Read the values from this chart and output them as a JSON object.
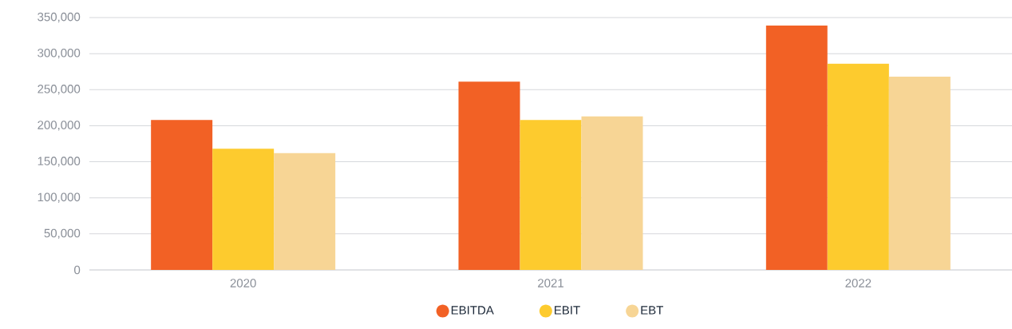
{
  "chart_data": {
    "type": "bar",
    "categories": [
      "2020",
      "2021",
      "2022"
    ],
    "series": [
      {
        "name": "EBITDA",
        "color": "#f26125",
        "values": [
          208000,
          261000,
          339000
        ]
      },
      {
        "name": "EBIT",
        "color": "#fdcb2e",
        "values": [
          168000,
          208000,
          286000
        ]
      },
      {
        "name": "EBT",
        "color": "#f7d595",
        "values": [
          162000,
          213000,
          268000
        ]
      }
    ],
    "ylim": [
      0,
      350000
    ],
    "yticks": [
      0,
      {
        "value": 50000,
        "label": "50,000"
      },
      {
        "value": 100000,
        "label": "100,000"
      },
      {
        "value": 150000,
        "label": "150,000"
      },
      {
        "value": 200000,
        "label": "200,000"
      },
      {
        "value": 250000,
        "label": "250,000"
      },
      {
        "value": 300000,
        "label": "300,000"
      },
      {
        "value": 350000,
        "label": "350,000"
      }
    ],
    "grid": "y",
    "legend": "bottom"
  }
}
